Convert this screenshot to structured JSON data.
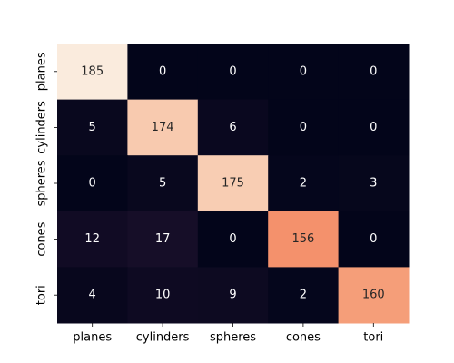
{
  "chart_data": {
    "type": "heatmap",
    "title": "",
    "xlabel": "",
    "ylabel": "",
    "rows": [
      "planes",
      "cylinders",
      "spheres",
      "cones",
      "tori"
    ],
    "columns": [
      "planes",
      "cylinders",
      "spheres",
      "cones",
      "tori"
    ],
    "values": [
      [
        185,
        0,
        0,
        0,
        0
      ],
      [
        5,
        174,
        6,
        0,
        0
      ],
      [
        0,
        5,
        175,
        2,
        3
      ],
      [
        12,
        17,
        0,
        156,
        0
      ],
      [
        4,
        10,
        9,
        2,
        160
      ]
    ],
    "colorbar": false,
    "colormap": "rocket",
    "low_color": "#03051a",
    "high_color": "#faebdd"
  }
}
